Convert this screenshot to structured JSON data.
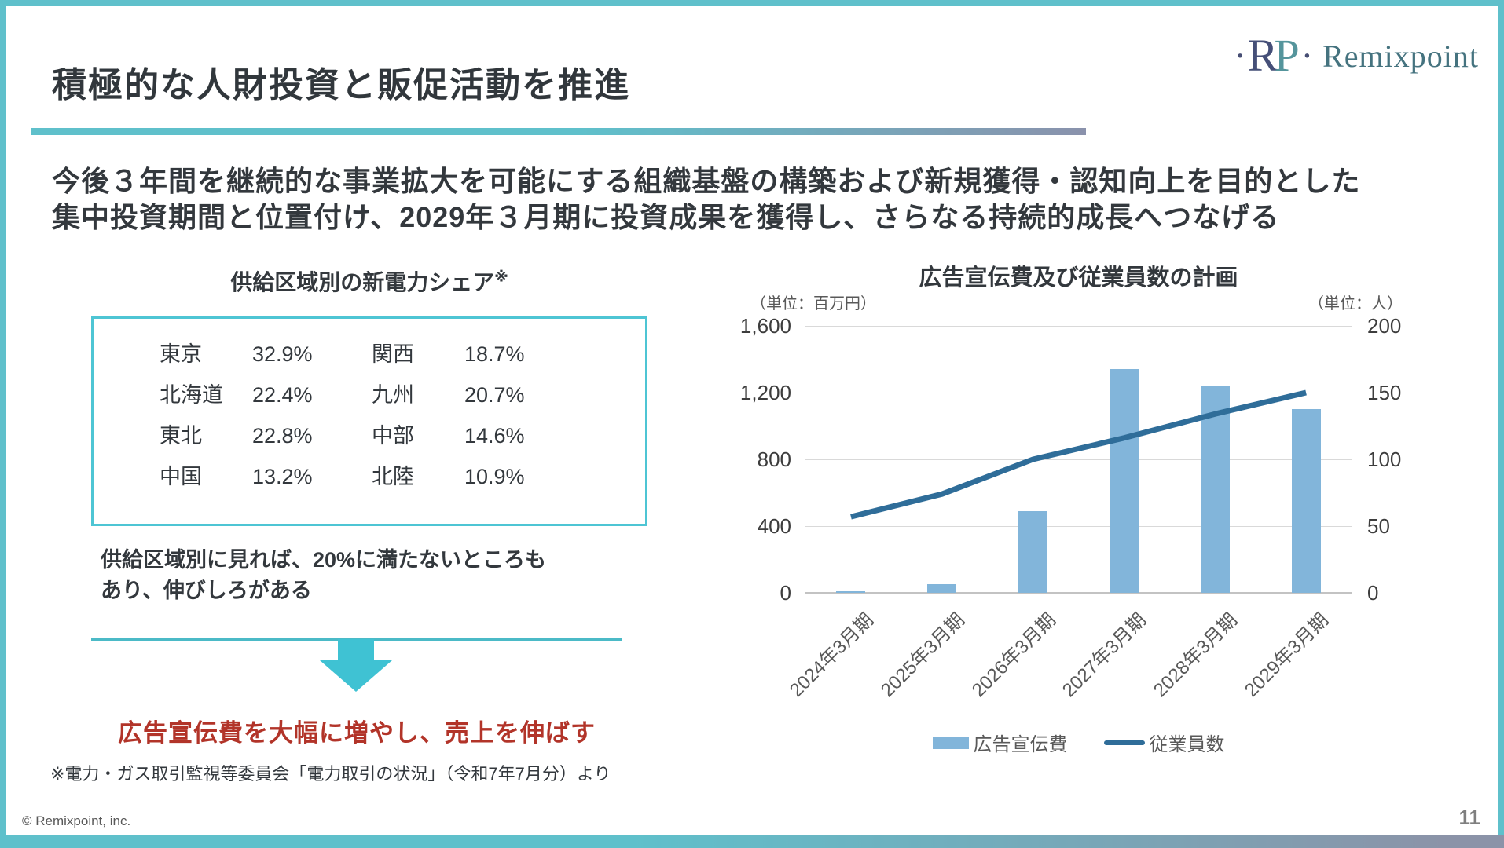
{
  "slide": {
    "title": "積極的な人財投資と販促活動を推進",
    "logo": {
      "dot": "·",
      "mark_r": "R",
      "mark_p": "P",
      "wordmark": "Remixpoint"
    }
  },
  "lead": {
    "line1": "今後３年間を継続的な事業拡大を可能にする組織基盤の構築および新規獲得・認知向上を目的とした",
    "line2": "集中投資期間と位置付け、2029年３月期に投資成果を獲得し、さらなる持続的成長へつなげる"
  },
  "share_panel": {
    "title": "供給区域別の新電力シェア",
    "title_note_mark": "※",
    "rows": [
      {
        "region_l": "東京",
        "value_l": "32.9%",
        "region_r": "関西",
        "value_r": "18.7%"
      },
      {
        "region_l": "北海道",
        "value_l": "22.4%",
        "region_r": "九州",
        "value_r": "20.7%"
      },
      {
        "region_l": "東北",
        "value_l": "22.8%",
        "region_r": "中部",
        "value_r": "14.6%"
      },
      {
        "region_l": "中国",
        "value_l": "13.2%",
        "region_r": "北陸",
        "value_r": "10.9%"
      }
    ],
    "note_line1": "供給区域別に見れば、20%に満たないところも",
    "note_line2": "あり、伸びしろがある",
    "emphasis": "広告宣伝費を大幅に増やし、売上を伸ばす",
    "source": "※電力・ガス取引監視等委員会「電力取引の状況」（令和7年7月分）より"
  },
  "chart_data": {
    "type": "bar",
    "subtype": "bar+line combo, dual axis",
    "title": "広告宣伝費及び従業員数の計画",
    "categories": [
      "2024年3月期",
      "2025年3月期",
      "2026年3月期",
      "2027年3月期",
      "2028年3月期",
      "2029年3月期"
    ],
    "series": [
      {
        "name": "広告宣伝費",
        "type": "bar",
        "axis": "left",
        "unit": "百万円",
        "values": [
          10,
          50,
          490,
          1340,
          1240,
          1100
        ]
      },
      {
        "name": "従業員数",
        "type": "line",
        "axis": "right",
        "unit": "人",
        "values": [
          57,
          74,
          100,
          116,
          134,
          150
        ]
      }
    ],
    "left_axis": {
      "label": "（単位：百万円）",
      "ticks": [
        "1,600",
        "1,200",
        "800",
        "400",
        "0"
      ],
      "range": [
        0,
        1600
      ]
    },
    "right_axis": {
      "label": "（単位：人）",
      "ticks": [
        "200",
        "150",
        "100",
        "50",
        "0"
      ],
      "range": [
        0,
        200
      ]
    },
    "grid": true,
    "legend_position": "bottom",
    "colors": {
      "bar": "#82b5da",
      "line": "#2f6d99"
    }
  },
  "theme": {
    "accent_teal": "#5fc0cb",
    "accent_slate": "#8b93a8",
    "box_border": "#4ec5d4",
    "arrow": "#3fc2d3",
    "emphasis_red": "#b23429"
  },
  "footer": {
    "copyright": "© Remixpoint, inc.",
    "page": "11"
  }
}
